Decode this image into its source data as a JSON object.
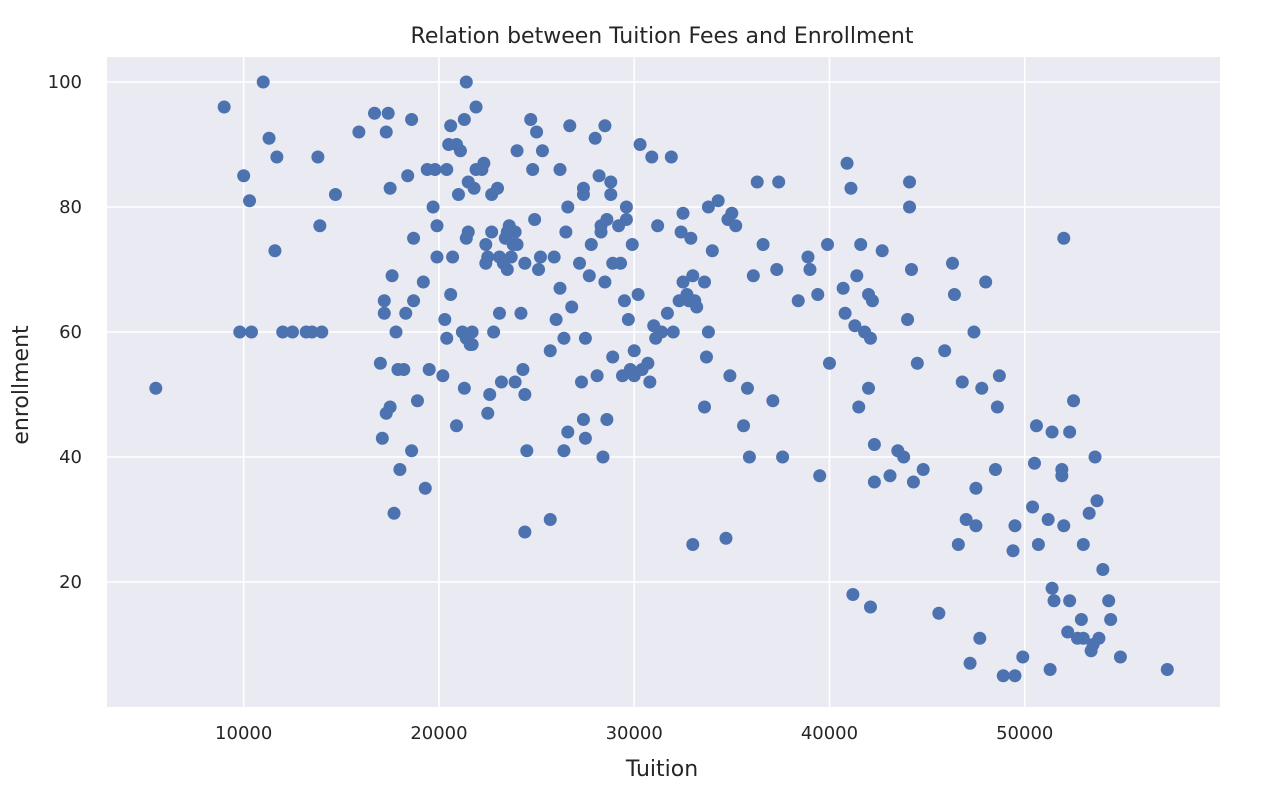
{
  "chart_data": {
    "type": "scatter",
    "title": "Relation between Tuition Fees and Enrollment",
    "xlabel": "Tuition",
    "ylabel": "enrollment",
    "xlim": [
      3000,
      60000
    ],
    "ylim": [
      0,
      104
    ],
    "xticks": [
      10000,
      20000,
      30000,
      40000,
      50000
    ],
    "yticks": [
      20,
      40,
      60,
      80,
      100
    ],
    "grid": true,
    "point_color": "#4c72b0",
    "background_color": "#eaeaf2",
    "points": [
      [
        5500,
        51
      ],
      [
        9000,
        96
      ],
      [
        9800,
        60
      ],
      [
        10000,
        85
      ],
      [
        10300,
        81
      ],
      [
        10400,
        60
      ],
      [
        11000,
        100
      ],
      [
        11300,
        91
      ],
      [
        11600,
        73
      ],
      [
        11700,
        88
      ],
      [
        12000,
        60
      ],
      [
        12500,
        60
      ],
      [
        13200,
        60
      ],
      [
        13500,
        60
      ],
      [
        13800,
        88
      ],
      [
        13900,
        77
      ],
      [
        14000,
        60
      ],
      [
        14700,
        82
      ],
      [
        15900,
        92
      ],
      [
        16700,
        95
      ],
      [
        17000,
        55
      ],
      [
        17100,
        43
      ],
      [
        17200,
        65
      ],
      [
        17200,
        63
      ],
      [
        17300,
        47
      ],
      [
        17300,
        92
      ],
      [
        17400,
        95
      ],
      [
        17500,
        83
      ],
      [
        17500,
        48
      ],
      [
        17600,
        69
      ],
      [
        17700,
        31
      ],
      [
        17800,
        60
      ],
      [
        17900,
        54
      ],
      [
        18000,
        38
      ],
      [
        18200,
        54
      ],
      [
        18300,
        63
      ],
      [
        18400,
        85
      ],
      [
        18600,
        41
      ],
      [
        18600,
        94
      ],
      [
        18700,
        65
      ],
      [
        18700,
        75
      ],
      [
        18900,
        49
      ],
      [
        19200,
        68
      ],
      [
        19300,
        35
      ],
      [
        19400,
        86
      ],
      [
        19500,
        54
      ],
      [
        19700,
        80
      ],
      [
        19800,
        86
      ],
      [
        19900,
        72
      ],
      [
        19900,
        77
      ],
      [
        20200,
        53
      ],
      [
        20300,
        62
      ],
      [
        20400,
        86
      ],
      [
        20400,
        59
      ],
      [
        20500,
        90
      ],
      [
        20600,
        66
      ],
      [
        20600,
        93
      ],
      [
        20700,
        72
      ],
      [
        20900,
        45
      ],
      [
        20900,
        90
      ],
      [
        21000,
        82
      ],
      [
        21100,
        89
      ],
      [
        21200,
        60
      ],
      [
        21300,
        51
      ],
      [
        21300,
        94
      ],
      [
        21400,
        75
      ],
      [
        21400,
        59
      ],
      [
        21400,
        100
      ],
      [
        21500,
        76
      ],
      [
        21500,
        84
      ],
      [
        21600,
        58
      ],
      [
        21700,
        58
      ],
      [
        21700,
        60
      ],
      [
        21800,
        83
      ],
      [
        21900,
        86
      ],
      [
        21900,
        96
      ],
      [
        22200,
        86
      ],
      [
        22300,
        87
      ],
      [
        22400,
        74
      ],
      [
        22400,
        71
      ],
      [
        22500,
        47
      ],
      [
        22500,
        72
      ],
      [
        22600,
        50
      ],
      [
        22700,
        76
      ],
      [
        22700,
        82
      ],
      [
        22800,
        60
      ],
      [
        23000,
        83
      ],
      [
        23100,
        72
      ],
      [
        23100,
        63
      ],
      [
        23200,
        52
      ],
      [
        23300,
        71
      ],
      [
        23400,
        75
      ],
      [
        23500,
        70
      ],
      [
        23500,
        76
      ],
      [
        23600,
        77
      ],
      [
        23700,
        72
      ],
      [
        23800,
        74
      ],
      [
        23900,
        52
      ],
      [
        23900,
        76
      ],
      [
        24000,
        89
      ],
      [
        24000,
        74
      ],
      [
        24200,
        63
      ],
      [
        24300,
        54
      ],
      [
        24400,
        71
      ],
      [
        24400,
        28
      ],
      [
        24400,
        50
      ],
      [
        24500,
        41
      ],
      [
        24700,
        94
      ],
      [
        24800,
        86
      ],
      [
        24900,
        78
      ],
      [
        25000,
        92
      ],
      [
        25100,
        70
      ],
      [
        25200,
        72
      ],
      [
        25300,
        89
      ],
      [
        25700,
        30
      ],
      [
        25700,
        57
      ],
      [
        25900,
        72
      ],
      [
        26000,
        62
      ],
      [
        26200,
        86
      ],
      [
        26200,
        67
      ],
      [
        26400,
        41
      ],
      [
        26400,
        59
      ],
      [
        26500,
        76
      ],
      [
        26600,
        80
      ],
      [
        26600,
        44
      ],
      [
        26700,
        93
      ],
      [
        26800,
        64
      ],
      [
        27200,
        71
      ],
      [
        27300,
        52
      ],
      [
        27400,
        82
      ],
      [
        27400,
        83
      ],
      [
        27400,
        46
      ],
      [
        27500,
        43
      ],
      [
        27500,
        59
      ],
      [
        27700,
        69
      ],
      [
        27800,
        74
      ],
      [
        28000,
        91
      ],
      [
        28100,
        53
      ],
      [
        28200,
        85
      ],
      [
        28300,
        77
      ],
      [
        28300,
        76
      ],
      [
        28400,
        40
      ],
      [
        28500,
        93
      ],
      [
        28500,
        68
      ],
      [
        28600,
        46
      ],
      [
        28600,
        78
      ],
      [
        28800,
        84
      ],
      [
        28800,
        82
      ],
      [
        28900,
        56
      ],
      [
        28900,
        71
      ],
      [
        29200,
        77
      ],
      [
        29300,
        71
      ],
      [
        29400,
        53
      ],
      [
        29500,
        65
      ],
      [
        29600,
        80
      ],
      [
        29600,
        78
      ],
      [
        29700,
        62
      ],
      [
        29800,
        54
      ],
      [
        29900,
        74
      ],
      [
        30000,
        57
      ],
      [
        30000,
        53
      ],
      [
        30200,
        66
      ],
      [
        30300,
        90
      ],
      [
        30400,
        54
      ],
      [
        30700,
        55
      ],
      [
        30800,
        52
      ],
      [
        30900,
        88
      ],
      [
        31000,
        61
      ],
      [
        31100,
        59
      ],
      [
        31200,
        77
      ],
      [
        31400,
        60
      ],
      [
        31700,
        63
      ],
      [
        31900,
        88
      ],
      [
        32000,
        60
      ],
      [
        32300,
        65
      ],
      [
        32400,
        76
      ],
      [
        32500,
        79
      ],
      [
        32500,
        68
      ],
      [
        32700,
        66
      ],
      [
        32800,
        65
      ],
      [
        32900,
        75
      ],
      [
        33000,
        69
      ],
      [
        33000,
        26
      ],
      [
        33100,
        65
      ],
      [
        33200,
        64
      ],
      [
        33600,
        48
      ],
      [
        33600,
        68
      ],
      [
        33700,
        56
      ],
      [
        33800,
        60
      ],
      [
        33800,
        80
      ],
      [
        34000,
        73
      ],
      [
        34300,
        81
      ],
      [
        34700,
        27
      ],
      [
        34800,
        78
      ],
      [
        34900,
        53
      ],
      [
        35000,
        79
      ],
      [
        35200,
        77
      ],
      [
        35600,
        45
      ],
      [
        35800,
        51
      ],
      [
        35900,
        40
      ],
      [
        36100,
        69
      ],
      [
        36300,
        84
      ],
      [
        36600,
        74
      ],
      [
        37100,
        49
      ],
      [
        37300,
        70
      ],
      [
        37400,
        84
      ],
      [
        37600,
        40
      ],
      [
        38400,
        65
      ],
      [
        38900,
        72
      ],
      [
        39000,
        70
      ],
      [
        39400,
        66
      ],
      [
        39500,
        37
      ],
      [
        39900,
        74
      ],
      [
        40000,
        55
      ],
      [
        40700,
        67
      ],
      [
        40800,
        63
      ],
      [
        40900,
        87
      ],
      [
        41100,
        83
      ],
      [
        41200,
        18
      ],
      [
        41300,
        61
      ],
      [
        41400,
        69
      ],
      [
        41500,
        48
      ],
      [
        41600,
        74
      ],
      [
        41800,
        60
      ],
      [
        42000,
        51
      ],
      [
        42000,
        66
      ],
      [
        42100,
        16
      ],
      [
        42100,
        59
      ],
      [
        42200,
        65
      ],
      [
        42300,
        42
      ],
      [
        42300,
        36
      ],
      [
        42700,
        73
      ],
      [
        43100,
        37
      ],
      [
        43500,
        41
      ],
      [
        43800,
        40
      ],
      [
        44000,
        62
      ],
      [
        44100,
        84
      ],
      [
        44100,
        80
      ],
      [
        44200,
        70
      ],
      [
        44300,
        36
      ],
      [
        44500,
        55
      ],
      [
        44800,
        38
      ],
      [
        45600,
        15
      ],
      [
        45900,
        57
      ],
      [
        46300,
        71
      ],
      [
        46400,
        66
      ],
      [
        46600,
        26
      ],
      [
        46800,
        52
      ],
      [
        47000,
        30
      ],
      [
        47200,
        7
      ],
      [
        47400,
        60
      ],
      [
        47500,
        35
      ],
      [
        47500,
        29
      ],
      [
        47700,
        11
      ],
      [
        47800,
        51
      ],
      [
        48000,
        68
      ],
      [
        48500,
        38
      ],
      [
        48600,
        48
      ],
      [
        48700,
        53
      ],
      [
        48900,
        5
      ],
      [
        49400,
        25
      ],
      [
        49500,
        29
      ],
      [
        49500,
        5
      ],
      [
        49900,
        8
      ],
      [
        50400,
        32
      ],
      [
        50500,
        39
      ],
      [
        50600,
        45
      ],
      [
        50700,
        26
      ],
      [
        51200,
        30
      ],
      [
        51300,
        6
      ],
      [
        51400,
        19
      ],
      [
        51400,
        44
      ],
      [
        51500,
        17
      ],
      [
        51900,
        38
      ],
      [
        51900,
        37
      ],
      [
        52000,
        29
      ],
      [
        52000,
        75
      ],
      [
        52200,
        12
      ],
      [
        52300,
        44
      ],
      [
        52300,
        17
      ],
      [
        52500,
        49
      ],
      [
        52700,
        11
      ],
      [
        52900,
        14
      ],
      [
        53000,
        26
      ],
      [
        53000,
        11
      ],
      [
        53300,
        31
      ],
      [
        53400,
        9
      ],
      [
        53500,
        10
      ],
      [
        53600,
        40
      ],
      [
        53700,
        33
      ],
      [
        53800,
        11
      ],
      [
        54000,
        22
      ],
      [
        54300,
        17
      ],
      [
        54400,
        14
      ],
      [
        54900,
        8
      ],
      [
        57300,
        6
      ]
    ]
  }
}
